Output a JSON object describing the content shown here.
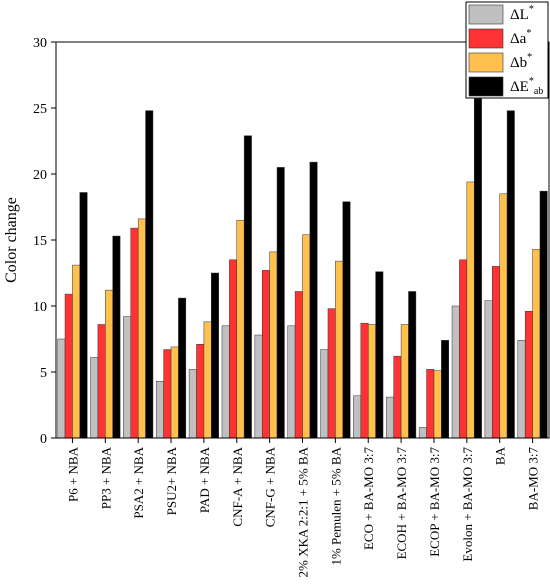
{
  "chart_data": {
    "type": "bar",
    "title": "",
    "xlabel": "",
    "ylabel": "Color change",
    "ylim": [
      0,
      30
    ],
    "yticks": [
      0,
      5,
      10,
      15,
      20,
      25,
      30
    ],
    "grid": false,
    "legend_position": "top-right",
    "categories": [
      "P6 + NBA",
      "PP3 + NBA",
      "PSA2 + NBA",
      "PSU2+ NBA",
      "PAD + NBA",
      "CNF-A + NBA",
      "CNF-G + NBA",
      "2% XKA 2:2:1 + 5% BA",
      "1% Pemulen + 5% BA",
      "ECO + BA-MO 3:7",
      "ECOH + BA-MO 3:7",
      "ECOP + BA-MO 3:7",
      "Evolon + BA-MO 3:7",
      "BA",
      "BA-MO 3:7"
    ],
    "series": [
      {
        "name": "ΔL*",
        "legend": {
          "main": "ΔL",
          "sup": "*",
          "sub": ""
        },
        "color": "#c0c0c0",
        "values": [
          7.5,
          6.1,
          9.2,
          4.3,
          5.2,
          8.5,
          7.8,
          8.5,
          6.7,
          3.2,
          3.1,
          0.8,
          10.0,
          10.4,
          7.4
        ]
      },
      {
        "name": "Δa*",
        "legend": {
          "main": "Δa",
          "sup": "*",
          "sub": ""
        },
        "color": "#ff3333",
        "values": [
          10.9,
          8.6,
          15.9,
          6.7,
          7.1,
          13.5,
          12.7,
          11.1,
          9.8,
          8.7,
          6.2,
          5.2,
          13.5,
          13.0,
          9.6
        ]
      },
      {
        "name": "Δb*",
        "legend": {
          "main": "Δb",
          "sup": "*",
          "sub": ""
        },
        "color": "#ffc04d",
        "values": [
          13.1,
          11.2,
          16.6,
          6.9,
          8.8,
          16.5,
          14.1,
          15.4,
          13.4,
          8.6,
          8.6,
          5.1,
          19.4,
          18.5,
          14.3
        ]
      },
      {
        "name": "ΔE*ab",
        "legend": {
          "main": "ΔE",
          "sup": "*",
          "sub": "ab"
        },
        "color": "#000000",
        "values": [
          18.6,
          15.3,
          24.8,
          10.6,
          12.5,
          22.9,
          20.5,
          20.9,
          17.9,
          12.6,
          11.1,
          7.4,
          25.7,
          24.8,
          18.7
        ]
      }
    ]
  }
}
